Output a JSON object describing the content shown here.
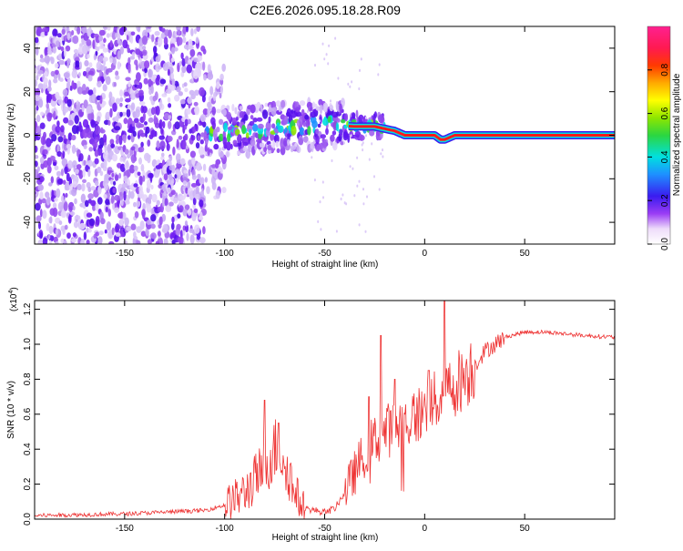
{
  "title": "C2E6.2026.095.18.28.R09",
  "chart_data": [
    {
      "type": "heatmap",
      "name": "spectrogram",
      "xlabel": "Height of straight line (km)",
      "ylabel": "Frequency (Hz)",
      "xlim": [
        -195,
        95
      ],
      "ylim": [
        -50,
        50
      ],
      "xticks": [
        -150,
        -100,
        -50,
        0,
        50
      ],
      "yticks": [
        -40,
        -20,
        0,
        20,
        40
      ],
      "ridge": {
        "x": [
          -130,
          -110,
          -90,
          -70,
          -50,
          -35,
          -25,
          -15,
          -10,
          -5,
          5,
          8,
          10,
          15,
          95
        ],
        "freq": [
          1,
          1,
          2,
          4,
          5,
          4,
          4,
          2,
          0,
          0,
          0,
          -2,
          -2,
          0,
          0
        ]
      },
      "colorbar": {
        "label": "Normalized spectral amplitude",
        "range": [
          0.0,
          1.0
        ],
        "ticks": [
          0.0,
          0.2,
          0.4,
          0.6,
          0.8
        ]
      }
    },
    {
      "type": "line",
      "name": "snr",
      "xlabel": "Height of straight line (km)",
      "ylabel": "SNR (10 * v/v)",
      "multiplier_label": "(x10",
      "multiplier_exp": "4",
      "multiplier_close": ")",
      "xlim": [
        -195,
        95
      ],
      "ylim": [
        0.0,
        1.25
      ],
      "xticks": [
        -150,
        -100,
        -50,
        0,
        50
      ],
      "yticks": [
        0.0,
        0.2,
        0.4,
        0.6,
        0.8,
        1.0,
        1.2
      ],
      "ytick_labels": [
        "0.0",
        "0.2",
        "0.4",
        "0.6",
        "0.8",
        "1.0",
        "1.2"
      ],
      "color": "#ee3333",
      "envelope": {
        "x": [
          -195,
          -150,
          -110,
          -100,
          -90,
          -80,
          -75,
          -70,
          -65,
          -60,
          -50,
          -45,
          -40,
          -30,
          -25,
          -20,
          -10,
          0,
          10,
          20,
          25,
          30,
          40,
          50,
          60,
          70,
          80,
          95
        ],
        "y": [
          0.02,
          0.03,
          0.05,
          0.08,
          0.15,
          0.3,
          0.4,
          0.35,
          0.15,
          0.06,
          0.04,
          0.06,
          0.15,
          0.38,
          0.45,
          0.5,
          0.55,
          0.62,
          0.72,
          0.82,
          0.88,
          0.96,
          1.04,
          1.07,
          1.07,
          1.06,
          1.05,
          1.04
        ]
      },
      "spikes": [
        {
          "x": -80,
          "y": 0.68
        },
        {
          "x": -73,
          "y": 0.55
        },
        {
          "x": -28,
          "y": 0.7
        },
        {
          "x": -22,
          "y": 1.05
        },
        {
          "x": -15,
          "y": 0.8
        },
        {
          "x": 10,
          "y": 1.25
        },
        {
          "x": 2,
          "y": 0.85
        }
      ]
    }
  ]
}
